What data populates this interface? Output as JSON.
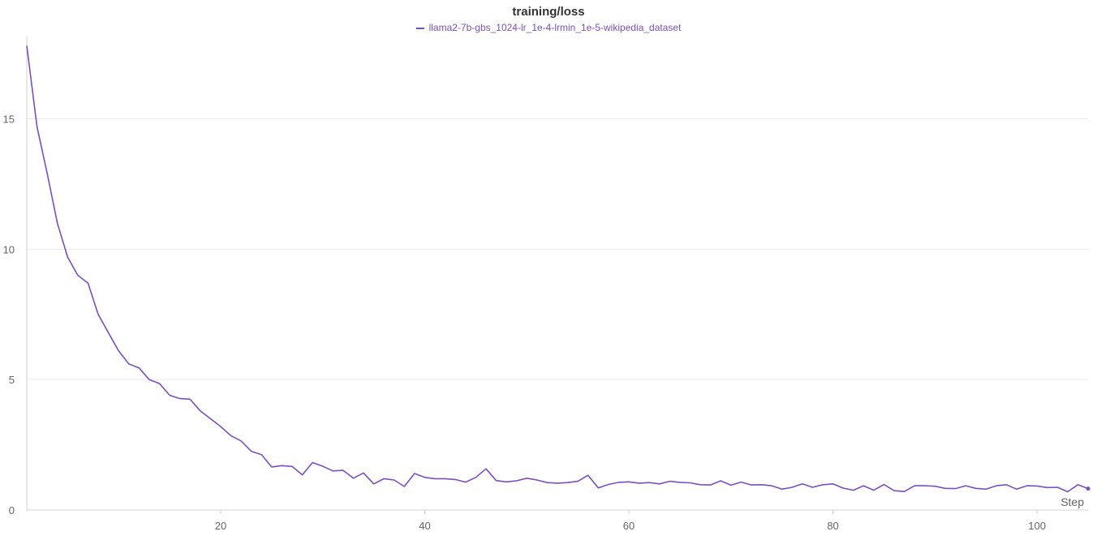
{
  "chart_data": {
    "type": "line",
    "title": "training/loss",
    "xlabel": "Step",
    "ylabel": "",
    "xlim": [
      1,
      105
    ],
    "ylim": [
      0,
      18
    ],
    "xticks": [
      20,
      40,
      60,
      80,
      100
    ],
    "yticks": [
      0,
      5,
      10,
      15
    ],
    "grid": "horizontal",
    "legend_position": "top-center",
    "series": [
      {
        "name": "llama2-7b-gbs_1024-lr_1e-4-lrmin_1e-5-wikipedia_dataset",
        "color": "#7b4fc4",
        "x": [
          1,
          2,
          3,
          4,
          5,
          6,
          7,
          8,
          9,
          10,
          11,
          12,
          13,
          14,
          15,
          16,
          17,
          18,
          19,
          20,
          21,
          22,
          23,
          24,
          25,
          26,
          27,
          28,
          29,
          30,
          31,
          32,
          33,
          34,
          35,
          36,
          37,
          38,
          39,
          40,
          41,
          42,
          43,
          44,
          45,
          46,
          47,
          48,
          49,
          50,
          51,
          52,
          53,
          54,
          55,
          56,
          57,
          58,
          59,
          60,
          61,
          62,
          63,
          64,
          65,
          66,
          67,
          68,
          69,
          70,
          71,
          72,
          73,
          74,
          75,
          76,
          77,
          78,
          79,
          80,
          81,
          82,
          83,
          84,
          85,
          86,
          87,
          88,
          89,
          90,
          91,
          92,
          93,
          94,
          95,
          96,
          97,
          98,
          99,
          100,
          101,
          102,
          103,
          104,
          105
        ],
        "y": [
          17.8,
          14.7,
          12.9,
          11.0,
          9.7,
          9.0,
          8.7,
          7.5,
          6.8,
          6.1,
          5.6,
          5.45,
          5.0,
          4.85,
          4.4,
          4.27,
          4.25,
          3.8,
          3.5,
          3.2,
          2.85,
          2.65,
          2.25,
          2.12,
          1.65,
          1.7,
          1.67,
          1.35,
          1.82,
          1.68,
          1.5,
          1.52,
          1.22,
          1.42,
          1.0,
          1.2,
          1.15,
          0.9,
          1.4,
          1.25,
          1.2,
          1.2,
          1.17,
          1.07,
          1.25,
          1.58,
          1.13,
          1.08,
          1.12,
          1.22,
          1.15,
          1.05,
          1.03,
          1.05,
          1.1,
          1.33,
          0.85,
          0.98,
          1.06,
          1.08,
          1.03,
          1.05,
          1.0,
          1.1,
          1.06,
          1.04,
          0.97,
          0.96,
          1.12,
          0.95,
          1.07,
          0.96,
          0.97,
          0.93,
          0.8,
          0.87,
          1.0,
          0.87,
          0.97,
          1.0,
          0.84,
          0.76,
          0.93,
          0.76,
          0.98,
          0.74,
          0.71,
          0.93,
          0.93,
          0.91,
          0.83,
          0.82,
          0.93,
          0.83,
          0.8,
          0.93,
          0.97,
          0.8,
          0.93,
          0.92,
          0.86,
          0.87,
          0.7,
          0.97,
          0.82
        ]
      }
    ]
  }
}
